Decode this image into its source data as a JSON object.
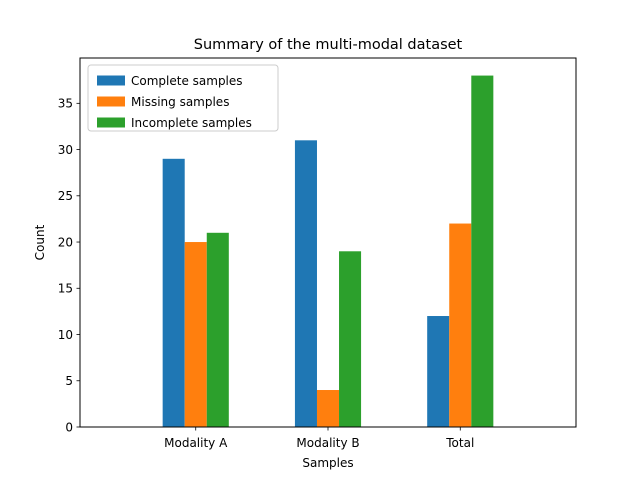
{
  "chart_data": {
    "type": "bar",
    "title": "Summary of the multi-modal dataset",
    "xlabel": "Samples",
    "ylabel": "Count",
    "categories": [
      "Modality A",
      "Modality B",
      "Total"
    ],
    "ylim": [
      0,
      39.9
    ],
    "yticks": [
      0,
      5,
      10,
      15,
      20,
      25,
      30,
      35
    ],
    "grid": false,
    "legend_position": "top-left",
    "series": [
      {
        "name": "Complete samples",
        "color": "#1f77b4",
        "values": [
          29,
          31,
          12
        ]
      },
      {
        "name": "Missing samples",
        "color": "#ff7f0e",
        "values": [
          20,
          4,
          22
        ]
      },
      {
        "name": "Incomplete samples",
        "color": "#2ca02c",
        "values": [
          21,
          19,
          38
        ]
      }
    ]
  }
}
